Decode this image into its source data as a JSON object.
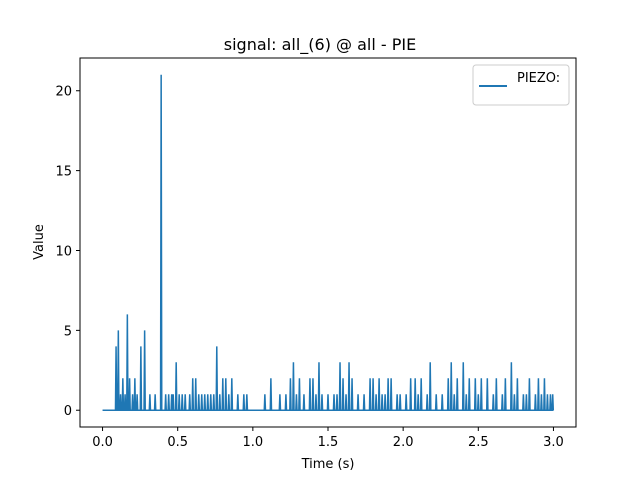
{
  "chart_data": {
    "type": "line",
    "title": "signal: all_(6) @ all - PIE",
    "xlabel": "Time (s)",
    "ylabel": "Value",
    "xlim": [
      -0.15,
      3.15
    ],
    "ylim": [
      -1.05,
      22.05
    ],
    "xticks": [
      0.0,
      0.5,
      1.0,
      1.5,
      2.0,
      2.5,
      3.0
    ],
    "xtick_labels": [
      "0.0",
      "0.5",
      "1.0",
      "1.5",
      "2.0",
      "2.5",
      "3.0"
    ],
    "yticks": [
      0,
      5,
      10,
      15,
      20
    ],
    "ytick_labels": [
      "0",
      "5",
      "10",
      "15",
      "20"
    ],
    "grid": false,
    "legend": {
      "position": "top-right"
    },
    "series": [
      {
        "name": "PIEZO:",
        "color": "#1f77b4",
        "spikes": [
          [
            0.09,
            4
          ],
          [
            0.105,
            5
          ],
          [
            0.12,
            1
          ],
          [
            0.135,
            2
          ],
          [
            0.15,
            1
          ],
          [
            0.165,
            6
          ],
          [
            0.18,
            2
          ],
          [
            0.2,
            1
          ],
          [
            0.215,
            2
          ],
          [
            0.23,
            1
          ],
          [
            0.255,
            4
          ],
          [
            0.28,
            5
          ],
          [
            0.315,
            1
          ],
          [
            0.35,
            1
          ],
          [
            0.39,
            21
          ],
          [
            0.42,
            1
          ],
          [
            0.44,
            1
          ],
          [
            0.46,
            1
          ],
          [
            0.47,
            1
          ],
          [
            0.49,
            3
          ],
          [
            0.51,
            1
          ],
          [
            0.53,
            1
          ],
          [
            0.55,
            1
          ],
          [
            0.58,
            1
          ],
          [
            0.6,
            2
          ],
          [
            0.62,
            2
          ],
          [
            0.64,
            1
          ],
          [
            0.66,
            1
          ],
          [
            0.68,
            1
          ],
          [
            0.7,
            1
          ],
          [
            0.72,
            1
          ],
          [
            0.74,
            1
          ],
          [
            0.76,
            4
          ],
          [
            0.78,
            1
          ],
          [
            0.8,
            2
          ],
          [
            0.82,
            2
          ],
          [
            0.84,
            1
          ],
          [
            0.86,
            2
          ],
          [
            0.9,
            1
          ],
          [
            0.94,
            1
          ],
          [
            0.96,
            1
          ],
          [
            1.08,
            1
          ],
          [
            1.12,
            2
          ],
          [
            1.18,
            1
          ],
          [
            1.22,
            1
          ],
          [
            1.25,
            2
          ],
          [
            1.27,
            3
          ],
          [
            1.29,
            1
          ],
          [
            1.31,
            2
          ],
          [
            1.34,
            1
          ],
          [
            1.38,
            2
          ],
          [
            1.4,
            2
          ],
          [
            1.42,
            1
          ],
          [
            1.44,
            3
          ],
          [
            1.46,
            1
          ],
          [
            1.5,
            1
          ],
          [
            1.54,
            1
          ],
          [
            1.56,
            1
          ],
          [
            1.58,
            3
          ],
          [
            1.6,
            2
          ],
          [
            1.62,
            1
          ],
          [
            1.64,
            3
          ],
          [
            1.66,
            2
          ],
          [
            1.7,
            1
          ],
          [
            1.74,
            1
          ],
          [
            1.78,
            2
          ],
          [
            1.8,
            2
          ],
          [
            1.82,
            1
          ],
          [
            1.84,
            2
          ],
          [
            1.86,
            1
          ],
          [
            1.88,
            1
          ],
          [
            1.9,
            2
          ],
          [
            1.92,
            2
          ],
          [
            1.96,
            1
          ],
          [
            1.98,
            1
          ],
          [
            2.02,
            1
          ],
          [
            2.05,
            2
          ],
          [
            2.08,
            2
          ],
          [
            2.1,
            1
          ],
          [
            2.12,
            2
          ],
          [
            2.16,
            1
          ],
          [
            2.18,
            3
          ],
          [
            2.22,
            1
          ],
          [
            2.26,
            1
          ],
          [
            2.3,
            2
          ],
          [
            2.32,
            3
          ],
          [
            2.34,
            1
          ],
          [
            2.36,
            2
          ],
          [
            2.4,
            3
          ],
          [
            2.42,
            1
          ],
          [
            2.44,
            2
          ],
          [
            2.48,
            2
          ],
          [
            2.5,
            1
          ],
          [
            2.52,
            2
          ],
          [
            2.56,
            2
          ],
          [
            2.6,
            1
          ],
          [
            2.62,
            2
          ],
          [
            2.66,
            1
          ],
          [
            2.68,
            2
          ],
          [
            2.72,
            3
          ],
          [
            2.74,
            1
          ],
          [
            2.76,
            2
          ],
          [
            2.8,
            1
          ],
          [
            2.82,
            1
          ],
          [
            2.84,
            2
          ],
          [
            2.88,
            1
          ],
          [
            2.9,
            2
          ],
          [
            2.92,
            1
          ],
          [
            2.94,
            2
          ],
          [
            2.96,
            1
          ],
          [
            2.98,
            1
          ],
          [
            2.995,
            1
          ]
        ]
      }
    ]
  }
}
